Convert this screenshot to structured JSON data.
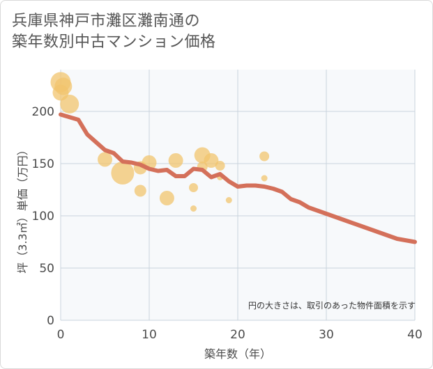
{
  "chart_data": {
    "type": "scatter",
    "title_lines": [
      "兵庫県神戸市灘区灘南通の",
      "築年数別中古マンション価格"
    ],
    "xlabel": "築年数（年）",
    "ylabel": "坪（3.3㎡）単価（万円）",
    "xlim": [
      0,
      40
    ],
    "ylim": [
      0,
      240
    ],
    "x_ticks": [
      0,
      10,
      20,
      30,
      40
    ],
    "y_ticks": [
      0,
      50,
      100,
      150,
      200
    ],
    "grid": true,
    "note": "円の大きさは、取引のあった物件面積を示す",
    "colors": {
      "bubble": "#f2c46d",
      "trend": "#d4705a",
      "grid": "#c9d3dc",
      "plot_bg": "#f7f9fb"
    },
    "bubbles": [
      {
        "x": 0,
        "y": 228,
        "size": 26
      },
      {
        "x": 0,
        "y": 218,
        "size": 20
      },
      {
        "x": 0.3,
        "y": 224,
        "size": 22
      },
      {
        "x": 1,
        "y": 207,
        "size": 24
      },
      {
        "x": 5,
        "y": 154,
        "size": 18
      },
      {
        "x": 7,
        "y": 141,
        "size": 30
      },
      {
        "x": 9,
        "y": 146,
        "size": 16
      },
      {
        "x": 9,
        "y": 124,
        "size": 14
      },
      {
        "x": 10,
        "y": 151,
        "size": 18
      },
      {
        "x": 12,
        "y": 117,
        "size": 18
      },
      {
        "x": 13,
        "y": 153,
        "size": 18
      },
      {
        "x": 15,
        "y": 127,
        "size": 10
      },
      {
        "x": 15,
        "y": 107,
        "size": 6
      },
      {
        "x": 16,
        "y": 158,
        "size": 20
      },
      {
        "x": 16,
        "y": 147,
        "size": 12
      },
      {
        "x": 17,
        "y": 153,
        "size": 18
      },
      {
        "x": 18,
        "y": 148,
        "size": 11
      },
      {
        "x": 18,
        "y": 137,
        "size": 6
      },
      {
        "x": 19,
        "y": 115,
        "size": 6
      },
      {
        "x": 23,
        "y": 157,
        "size": 11
      },
      {
        "x": 23,
        "y": 136,
        "size": 6
      }
    ],
    "trend": {
      "x": [
        0,
        2,
        3,
        5,
        6,
        7,
        8,
        9,
        10,
        11,
        12,
        13,
        14,
        15,
        16,
        17,
        18,
        19,
        20,
        21,
        22,
        23,
        24,
        25,
        26,
        27,
        28,
        30,
        32,
        34,
        36,
        38,
        40
      ],
      "y": [
        197,
        192,
        178,
        163,
        160,
        152,
        151,
        149,
        145,
        143,
        144,
        138,
        138,
        145,
        144,
        137,
        140,
        133,
        128,
        129,
        129,
        128,
        126,
        123,
        116,
        113,
        108,
        102,
        96,
        90,
        84,
        78,
        75
      ]
    }
  }
}
